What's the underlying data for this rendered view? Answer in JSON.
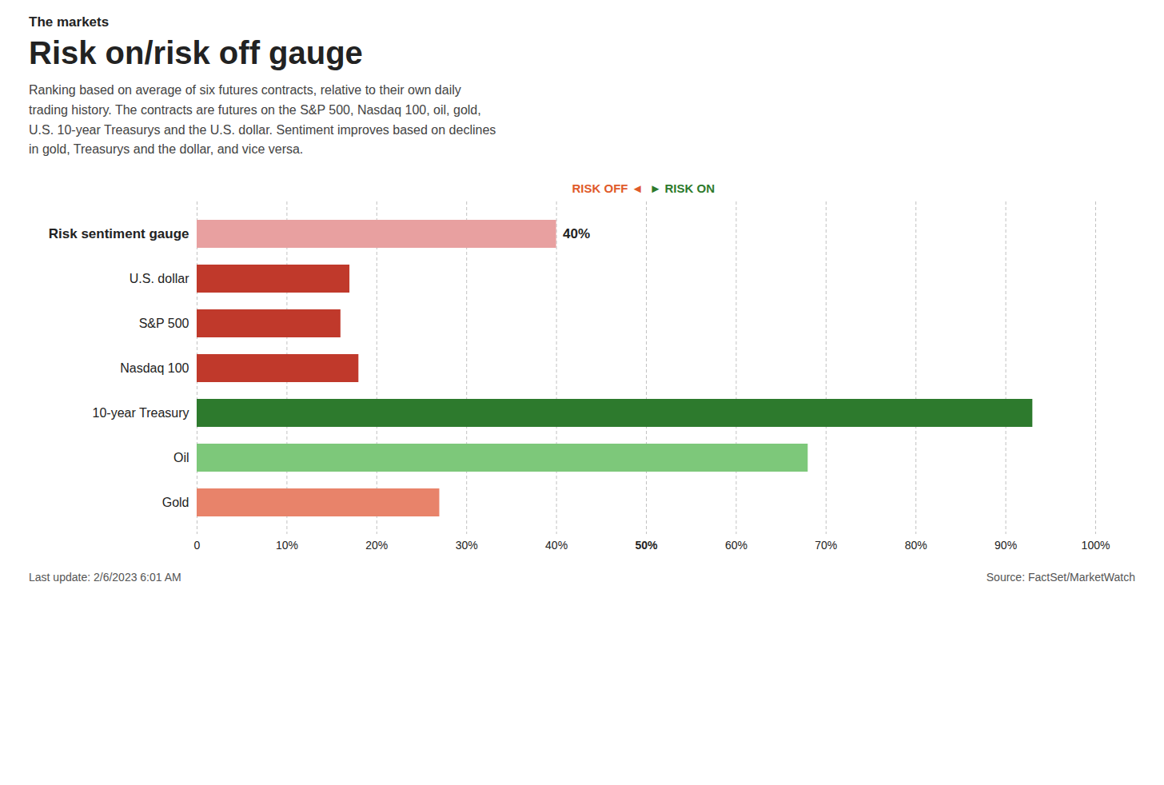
{
  "chart_data": {
    "type": "bar",
    "orientation": "horizontal",
    "suptitle": "The markets",
    "title": "Risk on/risk off gauge",
    "subtitle": "Ranking based on average of six futures contracts, relative to their own daily\ntrading history. The contracts are futures on the S&P 500, Nasdaq 100, oil, gold,\nU.S. 10-year Treasurys and the U.S. dollar. Sentiment improves based on declines\nin gold, Treasurys and the dollar, and vice versa.",
    "categories": [
      "Gold",
      "Oil",
      "10-year Treasury",
      "Nasdaq 100",
      "S&P 500",
      "U.S. dollar",
      "Risk sentiment gauge"
    ],
    "values": [
      27,
      68,
      93,
      18,
      16,
      17,
      40
    ],
    "colors": [
      "#e8836a",
      "#7dc87a",
      "#2d7a2d",
      "#c0392b",
      "#c0392b",
      "#c0392b",
      "#e8a0a0"
    ],
    "xlim": [
      0,
      100
    ],
    "xticks": [
      0,
      {
        "value": 10,
        "label": "10%"
      },
      {
        "value": 20,
        "label": "20%"
      },
      {
        "value": 30,
        "label": "30%"
      },
      {
        "value": 40,
        "label": "40%"
      },
      {
        "value": 50,
        "label": "50%"
      },
      {
        "value": 60,
        "label": "60%"
      },
      {
        "value": 70,
        "label": "70%"
      },
      {
        "value": 80,
        "label": "80%"
      },
      {
        "value": 90,
        "label": "90%"
      },
      {
        "value": 100,
        "label": "100%"
      }
    ],
    "grid": true,
    "annotations": [
      {
        "text": "40%",
        "category": "Risk sentiment gauge"
      },
      {
        "text": "RISK OFF ◄",
        "color": "#e05a2b",
        "x": 50
      },
      {
        "text": "► RISK ON",
        "color": "#2d7a2d",
        "x": 50
      }
    ],
    "footer": [
      "Last update: 2/6/2023 6:01 AM",
      "Source: FactSet/MarketWatch"
    ]
  }
}
